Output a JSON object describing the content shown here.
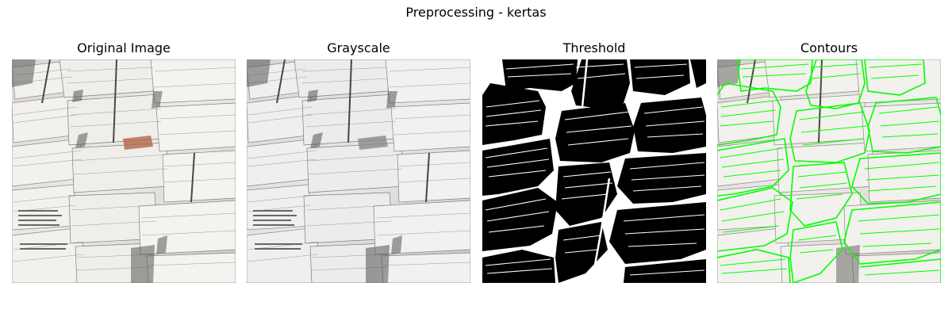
{
  "figure": {
    "suptitle": "Preprocessing - kertas"
  },
  "panels": [
    {
      "id": "original",
      "title": "Original Image",
      "image": "stacked-newspaper-bundles-color"
    },
    {
      "id": "grayscale",
      "title": "Grayscale",
      "image": "stacked-newspaper-bundles-grayscale"
    },
    {
      "id": "threshold",
      "title": "Threshold",
      "image": "stacked-newspaper-bundles-binary"
    },
    {
      "id": "contours",
      "title": "Contours",
      "image": "stacked-newspaper-bundles-green-contours"
    }
  ],
  "colors": {
    "contour": "#00ff00",
    "paper": "#e9e7e2",
    "shadow": "#6e6c68",
    "binary_fg": "#ffffff",
    "binary_bg": "#000000"
  }
}
